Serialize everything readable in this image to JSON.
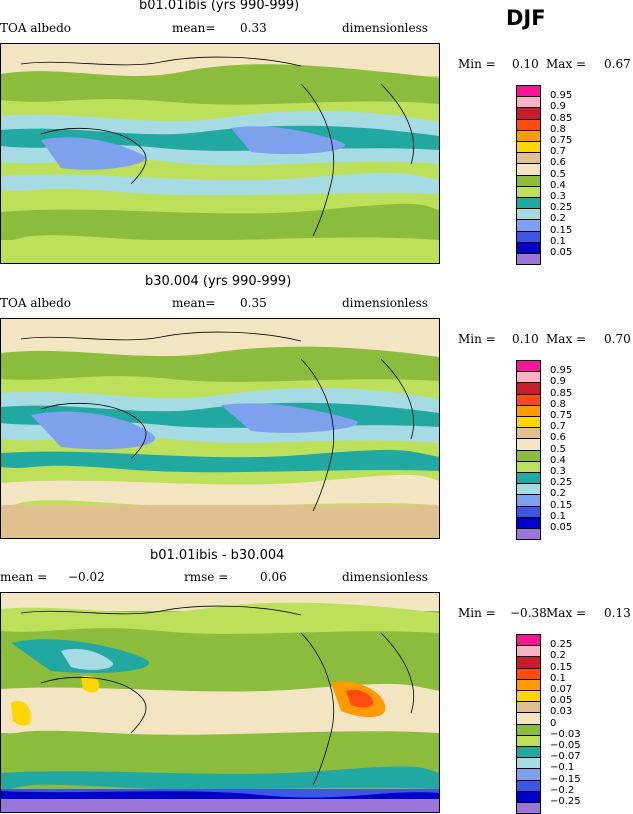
{
  "season": "DJF",
  "chart_data": [
    {
      "type": "heatmap",
      "title": "b01.01ibis (yrs 990-999)",
      "left_label": "TOA albedo",
      "mid_label": "mean=",
      "mid_value": "0.33",
      "right_label": "dimensionless",
      "min_label": "Min =",
      "min_value": "0.10",
      "max_label": "Max =",
      "max_value": "0.67",
      "levels": [
        "0.95",
        "0.9",
        "0.85",
        "0.8",
        "0.75",
        "0.7",
        "0.6",
        "0.5",
        "0.4",
        "0.3",
        "0.25",
        "0.2",
        "0.15",
        "0.1",
        "0.05"
      ],
      "colors": [
        "#f41694",
        "#f7b3c5",
        "#c41e2a",
        "#ff4a10",
        "#ff9a00",
        "#ffd600",
        "#e0c08e",
        "#f3e4c2",
        "#8cbc3c",
        "#bde05a",
        "#21a8a0",
        "#a7dbe4",
        "#7ea1ee",
        "#3c57e3",
        "#0000c8",
        "#9a76d8"
      ]
    },
    {
      "type": "heatmap",
      "title": "b30.004 (yrs 990-999)",
      "left_label": "TOA albedo",
      "mid_label": "mean=",
      "mid_value": "0.35",
      "right_label": "dimensionless",
      "min_label": "Min =",
      "min_value": "0.10",
      "max_label": "Max =",
      "max_value": "0.70",
      "levels": [
        "0.95",
        "0.9",
        "0.85",
        "0.8",
        "0.75",
        "0.7",
        "0.6",
        "0.5",
        "0.4",
        "0.3",
        "0.25",
        "0.2",
        "0.15",
        "0.1",
        "0.05"
      ],
      "colors": [
        "#f41694",
        "#f7b3c5",
        "#c41e2a",
        "#ff4a10",
        "#ff9a00",
        "#ffd600",
        "#e0c08e",
        "#f3e4c2",
        "#8cbc3c",
        "#bde05a",
        "#21a8a0",
        "#a7dbe4",
        "#7ea1ee",
        "#3c57e3",
        "#0000c8",
        "#9a76d8"
      ]
    },
    {
      "type": "heatmap",
      "title": "b01.01ibis - b30.004",
      "left_label": "mean =",
      "left_value": "−0.02",
      "mid_label": "rmse =",
      "mid_value": "0.06",
      "right_label": "dimensionless",
      "min_label": "Min =",
      "min_value": "−0.38",
      "max_label": "Max =",
      "max_value": "0.13",
      "levels": [
        "0.25",
        "0.2",
        "0.15",
        "0.1",
        "0.07",
        "0.05",
        "0.03",
        "0",
        "−0.03",
        "−0.05",
        "−0.07",
        "−0.1",
        "−0.15",
        "−0.2",
        "−0.25"
      ],
      "colors": [
        "#f41694",
        "#f7b3c5",
        "#c41e2a",
        "#ff4a10",
        "#ff9a00",
        "#ffd600",
        "#e0c08e",
        "#f3e4c2",
        "#8cbc3c",
        "#bde05a",
        "#21a8a0",
        "#a7dbe4",
        "#7ea1ee",
        "#3c57e3",
        "#0000c8",
        "#9a76d8"
      ]
    }
  ]
}
